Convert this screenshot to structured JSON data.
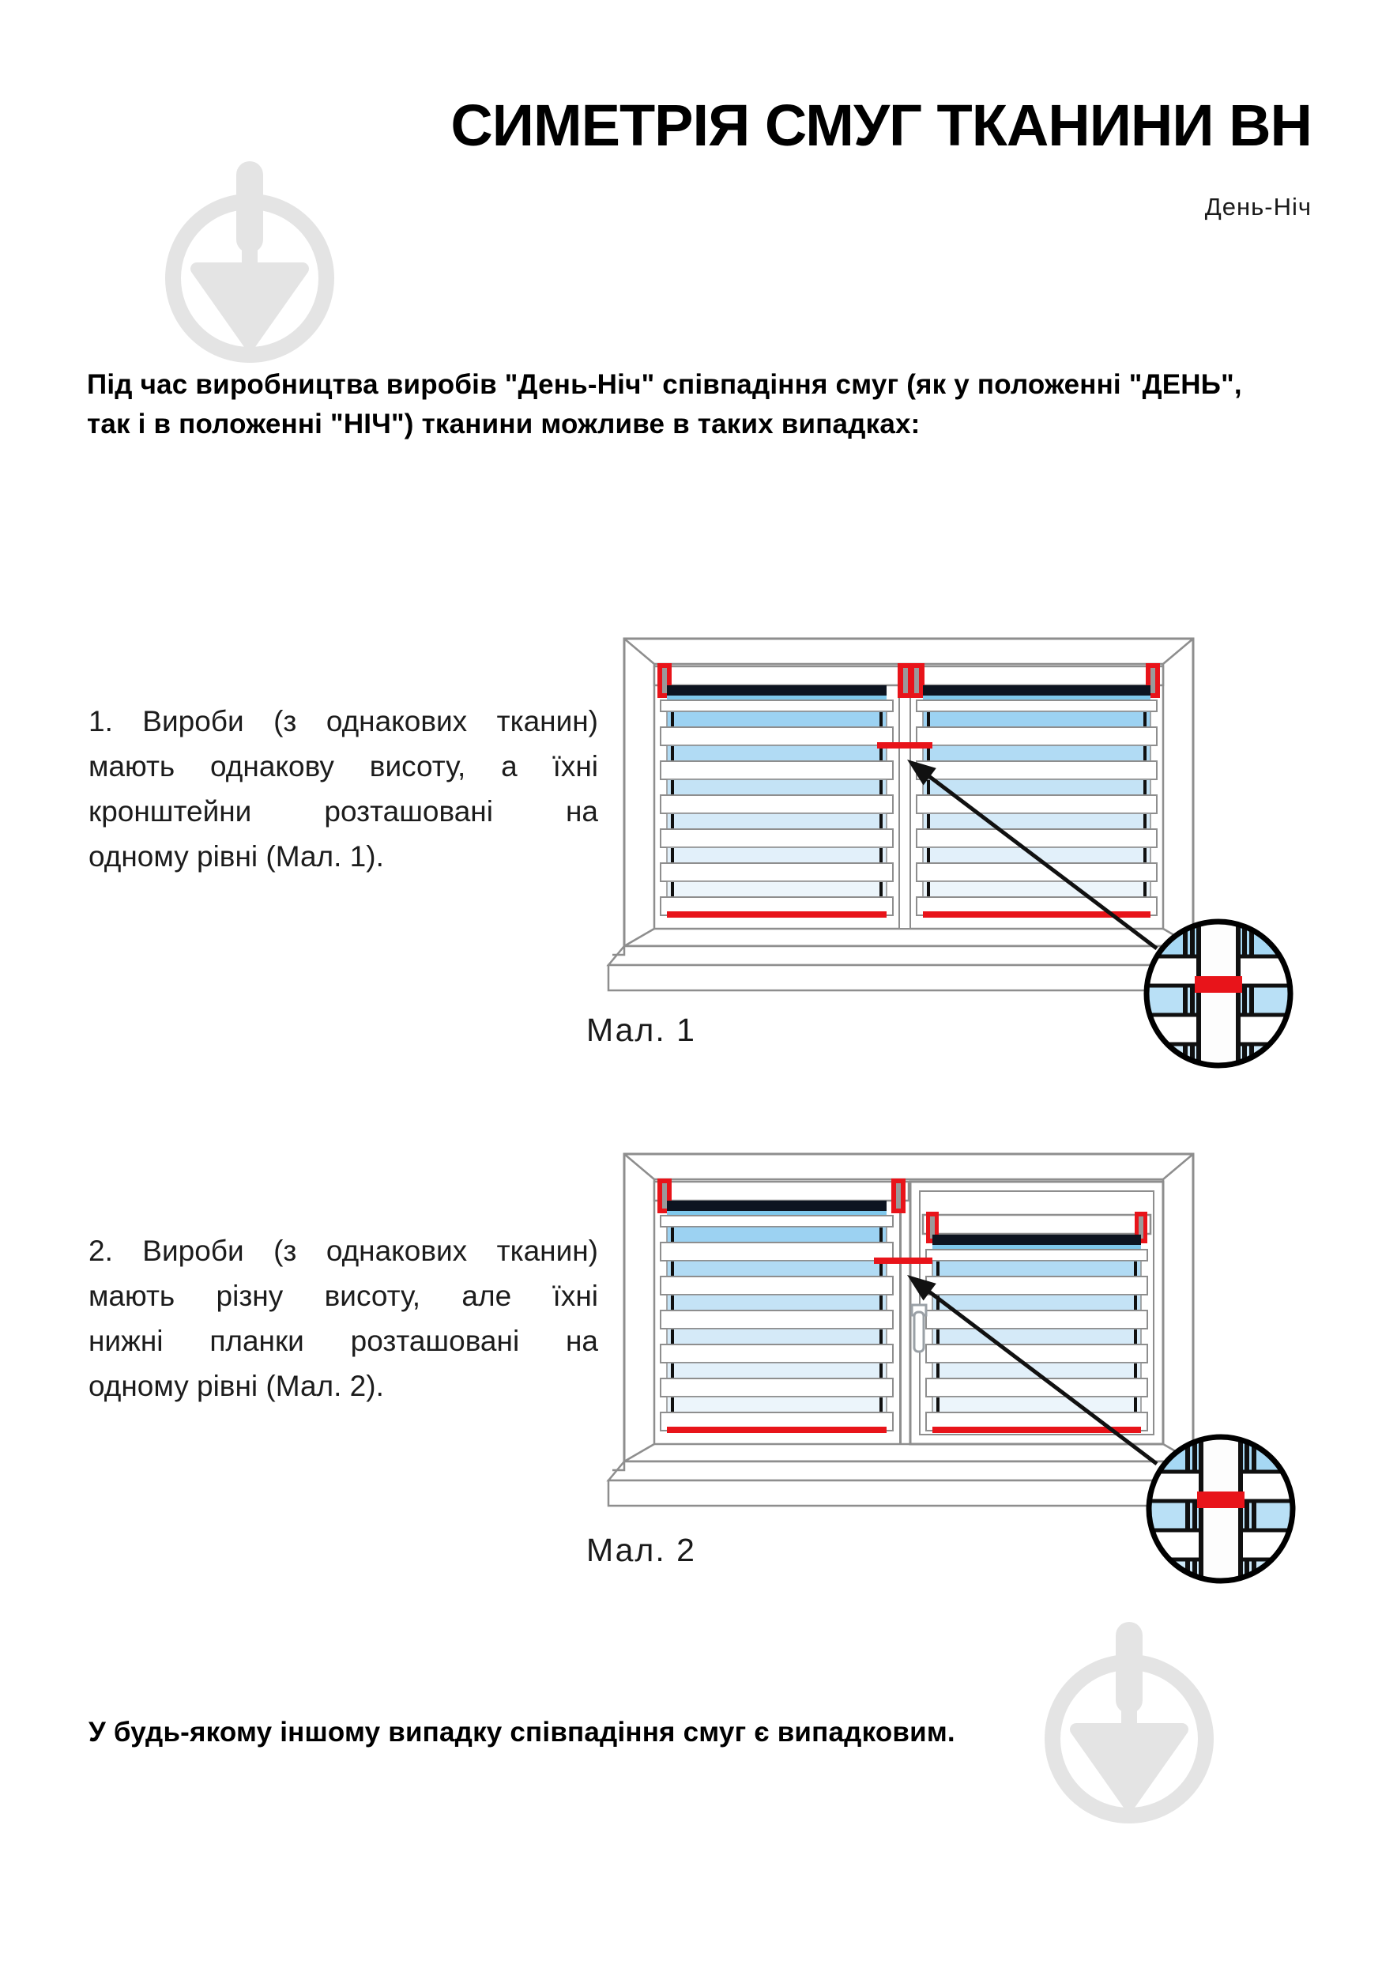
{
  "header": {
    "title": "СИМЕТРІЯ СМУГ ТКАНИНИ ВН",
    "subtitle": "День-Ніч"
  },
  "intro": {
    "lines": [
      "Під час виробництва виробів \"День-Ніч\" співпадіння смуг (як у положенні \"ДЕНЬ\",",
      "так і в положенні \"НІЧ\") тканини можливе в таких випадках:"
    ]
  },
  "items": [
    {
      "lines": [
        "1. Вироби (з однакових тканин)",
        "мають однакову висоту, а їхні",
        "кронштейни розташовані на",
        "одному рівні (Мал. 1)."
      ],
      "figure_label": "Мал. 1"
    },
    {
      "lines": [
        "2. Вироби (з однакових тканин)",
        "мають різну висоту, але їхні",
        "нижні планки розташовані на",
        "одному рівні (Мал. 2)."
      ],
      "figure_label": "Мал. 2"
    }
  ],
  "footer": {
    "text": "У будь-якому іншому випадку співпадіння смуг є випадковим."
  },
  "colors": {
    "accent_red": "#e8141a",
    "stripe_blue": "#9cd2f2",
    "stripe_blue_pale": "#ecf5fb",
    "fabric_dark": "#0d1420",
    "frame_gray": "#8e8e8e",
    "watermark_gray": "#e4e4e4"
  },
  "icons": {
    "watermark": "trowel-in-circle-icon"
  }
}
